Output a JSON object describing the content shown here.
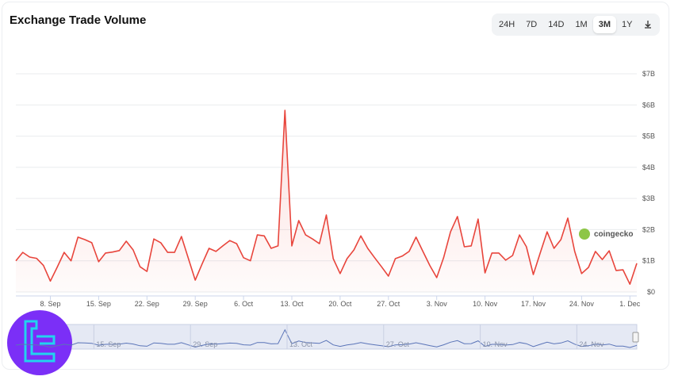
{
  "header": {
    "title": "Exchange Trade Volume",
    "ranges": [
      "24H",
      "7D",
      "14D",
      "1M",
      "3M",
      "1Y"
    ],
    "selected_range": "3M"
  },
  "watermark": "coingecko",
  "chart_data": {
    "type": "line",
    "color": "#e8453c",
    "grid": true,
    "categories": [
      null,
      null,
      null,
      null,
      null,
      "8. Sep",
      null,
      null,
      null,
      null,
      null,
      null,
      "15. Sep",
      null,
      null,
      null,
      null,
      null,
      null,
      "22. Sep",
      null,
      null,
      null,
      null,
      null,
      null,
      "29. Sep",
      null,
      null,
      null,
      null,
      null,
      null,
      "6. Oct",
      null,
      null,
      null,
      null,
      null,
      null,
      "13. Oct",
      null,
      null,
      null,
      null,
      null,
      null,
      "20. Oct",
      null,
      null,
      null,
      null,
      null,
      null,
      "27. Oct",
      null,
      null,
      null,
      null,
      null,
      null,
      "3. Nov",
      null,
      null,
      null,
      null,
      null,
      null,
      "10. Nov",
      null,
      null,
      null,
      null,
      null,
      null,
      "17. Nov",
      null,
      null,
      null,
      null,
      null,
      null,
      "24. Nov",
      null,
      null,
      null,
      null,
      null,
      null,
      "1. Dec",
      null
    ],
    "values": [
      1.0,
      1.27,
      1.12,
      1.08,
      0.85,
      0.35,
      0.8,
      1.27,
      1.0,
      1.76,
      1.68,
      1.58,
      0.97,
      1.25,
      1.28,
      1.33,
      1.63,
      1.35,
      0.81,
      0.66,
      1.7,
      1.58,
      1.27,
      1.27,
      1.78,
      1.08,
      0.38,
      0.9,
      1.4,
      1.3,
      1.48,
      1.65,
      1.55,
      1.1,
      1.0,
      1.83,
      1.8,
      1.4,
      1.48,
      5.83,
      1.48,
      2.29,
      1.83,
      1.7,
      1.55,
      2.47,
      1.07,
      0.59,
      1.07,
      1.35,
      1.8,
      1.4,
      1.1,
      0.81,
      0.51,
      1.07,
      1.15,
      1.3,
      1.76,
      1.3,
      0.85,
      0.46,
      1.1,
      1.93,
      2.42,
      1.45,
      1.48,
      2.34,
      0.61,
      1.25,
      1.25,
      1.02,
      1.17,
      1.83,
      1.45,
      0.56,
      1.25,
      1.93,
      1.4,
      1.68,
      2.37,
      1.3,
      0.59,
      0.79,
      1.3,
      1.04,
      1.32,
      0.69,
      0.71,
      0.25,
      0.92
    ],
    "ylim": [
      0,
      7
    ],
    "yticks": [
      {
        "value": 0,
        "label": "$0"
      },
      {
        "value": 1,
        "label": "$1B"
      },
      {
        "value": 2,
        "label": "$2B"
      },
      {
        "value": 3,
        "label": "$3B"
      },
      {
        "value": 4,
        "label": "$4B"
      },
      {
        "value": 5,
        "label": "$5B"
      },
      {
        "value": 6,
        "label": "$6B"
      },
      {
        "value": 7,
        "label": "$7B"
      }
    ]
  }
}
